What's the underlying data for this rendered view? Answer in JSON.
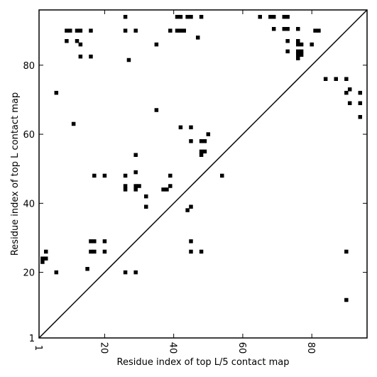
{
  "chart_data": {
    "type": "scatter",
    "xlabel": "Residue index of top L/5 contact map",
    "ylabel": "Residue index of top L contact map",
    "xlim": [
      1,
      96
    ],
    "ylim": [
      1,
      96
    ],
    "x_ticks": [
      1,
      20,
      40,
      60,
      80
    ],
    "y_ticks": [
      1,
      20,
      40,
      60,
      80
    ],
    "marker": "square",
    "diagonal": true,
    "points": [
      [
        26,
        94
      ],
      [
        41,
        94
      ],
      [
        42,
        94
      ],
      [
        44,
        94
      ],
      [
        45,
        94
      ],
      [
        48,
        94
      ],
      [
        65,
        94
      ],
      [
        68,
        94
      ],
      [
        69,
        94
      ],
      [
        72,
        94
      ],
      [
        73,
        94
      ],
      [
        9,
        90
      ],
      [
        10,
        90
      ],
      [
        12,
        90
      ],
      [
        13,
        90
      ],
      [
        16,
        90
      ],
      [
        26,
        90
      ],
      [
        29,
        90
      ],
      [
        39,
        90
      ],
      [
        41,
        90
      ],
      [
        42,
        90
      ],
      [
        43,
        90
      ],
      [
        69,
        90.5
      ],
      [
        72,
        90.5
      ],
      [
        73,
        90.5
      ],
      [
        76,
        90.5
      ],
      [
        81,
        90
      ],
      [
        82,
        90
      ],
      [
        47,
        88
      ],
      [
        9,
        87
      ],
      [
        12,
        87
      ],
      [
        13,
        86
      ],
      [
        73,
        87
      ],
      [
        76,
        87
      ],
      [
        35,
        86
      ],
      [
        76,
        86
      ],
      [
        77,
        86
      ],
      [
        80,
        86
      ],
      [
        73,
        84
      ],
      [
        76,
        84
      ],
      [
        77,
        84
      ],
      [
        76,
        83
      ],
      [
        77,
        83
      ],
      [
        76,
        82
      ],
      [
        13,
        82.5
      ],
      [
        16,
        82.5
      ],
      [
        27,
        81.5
      ],
      [
        84,
        76
      ],
      [
        87,
        76
      ],
      [
        90,
        76
      ],
      [
        91,
        73
      ],
      [
        90,
        72
      ],
      [
        94,
        72
      ],
      [
        91,
        69
      ],
      [
        94,
        69
      ],
      [
        94,
        65
      ],
      [
        6,
        72
      ],
      [
        35,
        67
      ],
      [
        11,
        63
      ],
      [
        42,
        62
      ],
      [
        45,
        62
      ],
      [
        50,
        60
      ],
      [
        45,
        58
      ],
      [
        48,
        58
      ],
      [
        49,
        58
      ],
      [
        48,
        55
      ],
      [
        49,
        55
      ],
      [
        48,
        54
      ],
      [
        29,
        54
      ],
      [
        29,
        49
      ],
      [
        17,
        48
      ],
      [
        20,
        48
      ],
      [
        26,
        48
      ],
      [
        39,
        48
      ],
      [
        54,
        48
      ],
      [
        26,
        45
      ],
      [
        26,
        44
      ],
      [
        29,
        45
      ],
      [
        30,
        45
      ],
      [
        29,
        44
      ],
      [
        39,
        45
      ],
      [
        37,
        44
      ],
      [
        38,
        44
      ],
      [
        32,
        42
      ],
      [
        32,
        39
      ],
      [
        44,
        38
      ],
      [
        45,
        39
      ],
      [
        16,
        29
      ],
      [
        17,
        29
      ],
      [
        20,
        29
      ],
      [
        45,
        29
      ],
      [
        3,
        26
      ],
      [
        16,
        26
      ],
      [
        17,
        26
      ],
      [
        20,
        26
      ],
      [
        45,
        26
      ],
      [
        48,
        26
      ],
      [
        90,
        26
      ],
      [
        2,
        24
      ],
      [
        3,
        24
      ],
      [
        2,
        23
      ],
      [
        15,
        21
      ],
      [
        6,
        20
      ],
      [
        26,
        20
      ],
      [
        29,
        20
      ],
      [
        90,
        12
      ]
    ]
  }
}
